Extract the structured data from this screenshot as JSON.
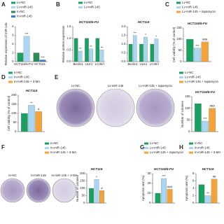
{
  "chart_data": [
    {
      "type": "bar",
      "panel": "A",
      "ylabel": "Relative expression of miR-145",
      "categories": [
        "HCT116/5-FU",
        "HCT116"
      ],
      "series": [
        {
          "name": "Lv-NC",
          "color": "#1aa061",
          "values": [
            1,
            null
          ]
        },
        {
          "name": "Lv-miR-145",
          "color": "#a9d6f2",
          "values": [
            2.9,
            null
          ],
          "significance": [
            "***",
            null
          ]
        },
        {
          "name": "In-NC",
          "color": "#2e8b57",
          "values": [
            null,
            1
          ]
        },
        {
          "name": "In-miR-145",
          "color": "#3a7bd5",
          "values": [
            null,
            0.2
          ],
          "significance": [
            null,
            "***"
          ]
        }
      ],
      "ylim": [
        0,
        4
      ],
      "yticks": [
        0,
        1,
        2,
        3,
        4
      ]
    },
    {
      "type": "grouped-bar",
      "panel": "B",
      "ylabel": "Relative protein expression",
      "series": [
        {
          "name": "Lv-NC",
          "color": "#1aa061"
        },
        {
          "name": "Lv-miR-145",
          "color": "#a9d6f2"
        }
      ],
      "subplots": [
        {
          "title": "HCT116/5-FU",
          "categories": [
            "Beclin1",
            "ULK1",
            "LC3II/I"
          ],
          "series": [
            {
              "values": [
                1,
                1,
                1
              ]
            },
            {
              "values": [
                0.45,
                0.55,
                0.5
              ],
              "significance": [
                "**",
                "**",
                "**"
              ]
            }
          ],
          "ylim": [
            0,
            1.5
          ],
          "yticks": [
            {
              "value": 0,
              "label": "0.0"
            },
            0.5,
            {
              "value": 1,
              "label": "1.0"
            },
            1.5
          ]
        },
        {
          "title": "HCT116",
          "categories": [
            "Beclin1",
            "ULK1",
            "LC3II/I"
          ],
          "series": [
            {
              "values": [
                1,
                1,
                1
              ]
            },
            {
              "values": [
                1.5,
                1.4,
                1.3
              ],
              "significance": [
                "**",
                "*",
                "*"
              ]
            }
          ],
          "ylim": [
            0,
            2
          ],
          "yticks": [
            {
              "value": 0,
              "label": "0.0"
            },
            0.5,
            {
              "value": 1,
              "label": "1.0"
            },
            1.5,
            {
              "value": 2,
              "label": "2.0"
            }
          ]
        }
      ]
    },
    {
      "type": "bar",
      "panel": "C",
      "title": "HCT116/5-FU",
      "ylabel": "Cell viability (% of control)",
      "series": [
        {
          "name": "Lv-NC",
          "color": "#1aa061",
          "values": [
            100
          ]
        },
        {
          "name": "Lv-miR-145",
          "color": "#a9d6f2",
          "values": [
            60
          ],
          "significance": [
            "***"
          ]
        },
        {
          "name": "Lv-miR-145 + rapamycin",
          "color": "#f4a23a",
          "values": [
            88
          ],
          "significance": [
            "###"
          ]
        }
      ],
      "ylim": [
        0,
        150
      ],
      "yticks": [
        0,
        50,
        100,
        150
      ]
    },
    {
      "type": "bar",
      "panel": "D",
      "title": "HCT116",
      "ylabel": "Cell viability (% of control)",
      "series": [
        {
          "name": "In-NC",
          "color": "#1aa061",
          "values": [
            100
          ]
        },
        {
          "name": "In-miR-145",
          "color": "#a9d6f2",
          "values": [
            145
          ],
          "significance": [
            "**"
          ]
        },
        {
          "name": "In-miR-145 + 3-MA",
          "color": "#f4a23a",
          "values": [
            110
          ],
          "significance": [
            "#"
          ]
        }
      ],
      "ylim": [
        0,
        200
      ],
      "yticks": [
        0,
        50,
        100,
        150,
        200
      ]
    },
    {
      "type": "bar",
      "panel": "E",
      "plates": [
        "Lv-NC",
        "Lv-miR-145",
        "Lv-miR-145 + rapamycin"
      ],
      "title": "HCT116/5-FU",
      "ylabel": "Number of colonies",
      "series": [
        {
          "name": "Lv-NC",
          "color": "#1aa061",
          "values": [
            120
          ]
        },
        {
          "name": "Lv-miR-145",
          "color": "#a9d6f2",
          "values": [
            45
          ],
          "significance": [
            "***"
          ]
        },
        {
          "name": "Lv-miR-145 + rapamycin",
          "color": "#f4a23a",
          "values": [
            100
          ],
          "significance": [
            "###"
          ]
        }
      ],
      "ylim": [
        0,
        150
      ],
      "yticks": [
        0,
        50,
        100,
        150
      ]
    },
    {
      "type": "bar",
      "panel": "F",
      "plates": [
        "In-NC",
        "In-miR-145",
        "In-miR-145 + 3-MA"
      ],
      "title": "HCT116",
      "ylabel": "Number of colonies",
      "series": [
        {
          "name": "In-NC",
          "color": "#1aa061",
          "values": [
            100
          ]
        },
        {
          "name": "In-miR-145",
          "color": "#a9d6f2",
          "values": [
            160
          ],
          "significance": [
            "*"
          ]
        },
        {
          "name": "In-miR-145 + 3-MA",
          "color": "#f4a23a",
          "values": [
            85
          ],
          "significance": [
            "#"
          ]
        }
      ],
      "ylim": [
        0,
        200
      ],
      "yticks": [
        0,
        50,
        100,
        150,
        200
      ]
    },
    {
      "type": "bar",
      "panel": "G",
      "title": "HCT116/5-FU",
      "ylabel": "Apoptosis rate (%)",
      "series": [
        {
          "name": "Lv-NC",
          "color": "#1aa061",
          "values": [
            10
          ]
        },
        {
          "name": "Lv-miR-145",
          "color": "#a9d6f2",
          "values": [
            25
          ],
          "significance": [
            "***"
          ]
        },
        {
          "name": "Lv-miR-145 + rapamycin",
          "color": "#f4a23a",
          "values": [
            14
          ],
          "significance": [
            "###"
          ]
        }
      ],
      "ylim": [
        0,
        30
      ],
      "yticks": [
        0,
        10,
        20,
        30
      ]
    },
    {
      "type": "bar",
      "panel": "H",
      "title": "HCT116",
      "ylabel": "Apoptosis rate (%)",
      "series": [
        {
          "name": "In-NC",
          "color": "#1aa061",
          "values": [
            5
          ]
        },
        {
          "name": "In-miR-145",
          "color": "#a9d6f2",
          "values": [
            2
          ],
          "significance": [
            "**"
          ]
        },
        {
          "name": "In-miR-145 + 3-MA",
          "color": "#f4a23a",
          "values": [
            6.5
          ],
          "significance": [
            "##"
          ]
        }
      ],
      "ylim": [
        0,
        8
      ],
      "yticks": [
        0,
        2,
        4,
        6,
        8
      ]
    }
  ]
}
